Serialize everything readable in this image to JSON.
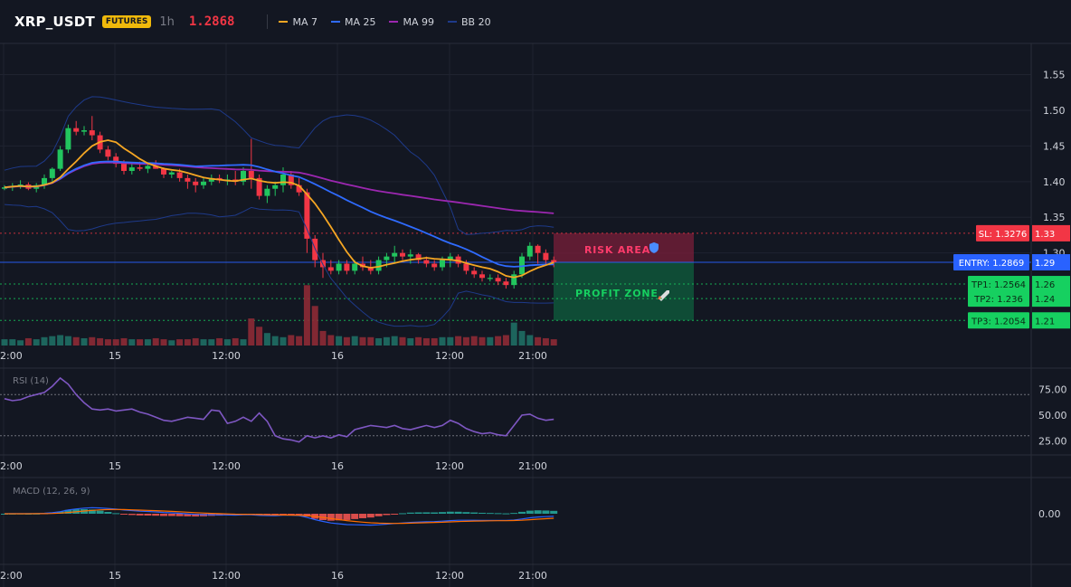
{
  "header": {
    "symbol": "XRP_USDT",
    "badge": "FUTURES",
    "interval": "1h",
    "last_price": "1.2868",
    "legend": [
      {
        "label": "MA 7",
        "color": "#f5a623"
      },
      {
        "label": "MA 25",
        "color": "#2f6bff"
      },
      {
        "label": "MA 99",
        "color": "#9c27b0"
      },
      {
        "label": "BB 20",
        "color": "#1e3a8a"
      }
    ]
  },
  "colors": {
    "background": "#131722",
    "up": "#26a69a",
    "up_bright": "#22c55e",
    "down": "#f23645",
    "ma7": "#f5a623",
    "ma25": "#2f6bff",
    "ma99": "#9c27b0",
    "bb": "#1e3a8a",
    "rsi": "#7e57c2",
    "sl": "#f23645",
    "entry": "#2962ff",
    "tp": "#16d060"
  },
  "time_axis_labels": [
    "2:00",
    "15",
    "12:00",
    "16",
    "12:00",
    "21:00"
  ],
  "price_axis": {
    "ticks": [
      "1.55",
      "1.50",
      "1.45",
      "1.40",
      "1.35",
      "1.30"
    ],
    "tags": [
      {
        "label": "SL: 1.3276",
        "value": "1.33",
        "price": 1.3276,
        "color": "#f23645"
      },
      {
        "label": "ENTRY: 1.2869",
        "value": "1.29",
        "price": 1.2869,
        "color": "#2962ff"
      },
      {
        "label": "TP1: 1.2564",
        "value": "1.26",
        "price": 1.2564,
        "color": "#16d060"
      },
      {
        "label": "TP2: 1.236",
        "value": "1.24",
        "price": 1.236,
        "color": "#16d060"
      },
      {
        "label": "TP3: 1.2054",
        "value": "1.21",
        "price": 1.2054,
        "color": "#16d060"
      }
    ]
  },
  "zones": {
    "risk_label": "RISK AREA",
    "profit_label": "PROFIT ZONE",
    "risk_icon": "shield-icon",
    "profit_icon": "rocket-icon"
  },
  "rsi": {
    "title": "RSI (14)",
    "ticks": [
      "75.00",
      "50.00",
      "25.00"
    ],
    "levels": [
      70,
      30
    ],
    "values": [
      66,
      64,
      65,
      68,
      70,
      72,
      78,
      86,
      80,
      70,
      62,
      56,
      55,
      56,
      54,
      55,
      56,
      53,
      51,
      48,
      45,
      44,
      46,
      48,
      47,
      46,
      55,
      54,
      42,
      44,
      48,
      44,
      52,
      44,
      30,
      27,
      26,
      24,
      30,
      28,
      30,
      28,
      31,
      29,
      36,
      38,
      40,
      39,
      38,
      40,
      37,
      36,
      38,
      40,
      38,
      40,
      45,
      42,
      37,
      34,
      32,
      33,
      31,
      30,
      40,
      50,
      51,
      47,
      45,
      46
    ]
  },
  "macd": {
    "title": "MACD (12, 26, 9)",
    "tick": "0.00"
  },
  "chart_data": {
    "type": "candlestick",
    "ylim": [
      1.2,
      1.565
    ],
    "candles": [
      [
        1.39,
        1.395,
        1.388,
        1.392
      ],
      [
        1.392,
        1.398,
        1.387,
        1.394
      ],
      [
        1.394,
        1.402,
        1.39,
        1.396
      ],
      [
        1.396,
        1.399,
        1.388,
        1.39
      ],
      [
        1.39,
        1.398,
        1.385,
        1.395
      ],
      [
        1.395,
        1.41,
        1.39,
        1.405
      ],
      [
        1.405,
        1.42,
        1.4,
        1.418
      ],
      [
        1.418,
        1.45,
        1.415,
        1.445
      ],
      [
        1.445,
        1.48,
        1.44,
        1.475
      ],
      [
        1.475,
        1.485,
        1.465,
        1.47
      ],
      [
        1.47,
        1.478,
        1.465,
        1.472
      ],
      [
        1.472,
        1.492,
        1.458,
        1.465
      ],
      [
        1.465,
        1.47,
        1.44,
        1.445
      ],
      [
        1.445,
        1.45,
        1.43,
        1.435
      ],
      [
        1.435,
        1.44,
        1.42,
        1.425
      ],
      [
        1.425,
        1.43,
        1.41,
        1.415
      ],
      [
        1.415,
        1.425,
        1.41,
        1.42
      ],
      [
        1.42,
        1.428,
        1.415,
        1.418
      ],
      [
        1.418,
        1.426,
        1.412,
        1.422
      ],
      [
        1.422,
        1.43,
        1.418,
        1.418
      ],
      [
        1.418,
        1.42,
        1.405,
        1.41
      ],
      [
        1.41,
        1.415,
        1.405,
        1.413
      ],
      [
        1.413,
        1.418,
        1.4,
        1.405
      ],
      [
        1.405,
        1.41,
        1.39,
        1.4
      ],
      [
        1.4,
        1.405,
        1.385,
        1.395
      ],
      [
        1.395,
        1.405,
        1.39,
        1.4
      ],
      [
        1.4,
        1.41,
        1.395,
        1.405
      ],
      [
        1.405,
        1.41,
        1.398,
        1.402
      ],
      [
        1.402,
        1.41,
        1.395,
        1.403
      ],
      [
        1.403,
        1.415,
        1.395,
        1.4
      ],
      [
        1.4,
        1.42,
        1.395,
        1.415
      ],
      [
        1.415,
        1.46,
        1.39,
        1.405
      ],
      [
        1.405,
        1.41,
        1.375,
        1.38
      ],
      [
        1.38,
        1.395,
        1.37,
        1.39
      ],
      [
        1.39,
        1.4,
        1.38,
        1.395
      ],
      [
        1.395,
        1.42,
        1.385,
        1.41
      ],
      [
        1.41,
        1.415,
        1.39,
        1.395
      ],
      [
        1.395,
        1.405,
        1.38,
        1.385
      ],
      [
        1.385,
        1.39,
        1.3,
        1.32
      ],
      [
        1.32,
        1.325,
        1.28,
        1.29
      ],
      [
        1.29,
        1.3,
        1.265,
        1.28
      ],
      [
        1.28,
        1.29,
        1.27,
        1.275
      ],
      [
        1.275,
        1.29,
        1.27,
        1.285
      ],
      [
        1.285,
        1.29,
        1.27,
        1.275
      ],
      [
        1.275,
        1.29,
        1.27,
        1.285
      ],
      [
        1.285,
        1.295,
        1.275,
        1.28
      ],
      [
        1.28,
        1.29,
        1.27,
        1.275
      ],
      [
        1.275,
        1.295,
        1.27,
        1.29
      ],
      [
        1.29,
        1.3,
        1.28,
        1.295
      ],
      [
        1.295,
        1.31,
        1.285,
        1.3
      ],
      [
        1.3,
        1.305,
        1.29,
        1.295
      ],
      [
        1.295,
        1.305,
        1.285,
        1.298
      ],
      [
        1.298,
        1.3,
        1.285,
        1.29
      ],
      [
        1.29,
        1.295,
        1.28,
        1.285
      ],
      [
        1.285,
        1.29,
        1.275,
        1.28
      ],
      [
        1.28,
        1.295,
        1.275,
        1.29
      ],
      [
        1.29,
        1.3,
        1.28,
        1.295
      ],
      [
        1.295,
        1.298,
        1.28,
        1.285
      ],
      [
        1.285,
        1.29,
        1.27,
        1.275
      ],
      [
        1.275,
        1.28,
        1.265,
        1.27
      ],
      [
        1.27,
        1.275,
        1.26,
        1.265
      ],
      [
        1.265,
        1.27,
        1.26,
        1.265
      ],
      [
        1.265,
        1.27,
        1.255,
        1.26
      ],
      [
        1.26,
        1.265,
        1.25,
        1.255
      ],
      [
        1.255,
        1.275,
        1.25,
        1.27
      ],
      [
        1.27,
        1.3,
        1.265,
        1.295
      ],
      [
        1.295,
        1.315,
        1.29,
        1.31
      ],
      [
        1.31,
        1.312,
        1.285,
        1.3
      ],
      [
        1.3,
        1.305,
        1.285,
        1.29
      ],
      [
        1.29,
        1.295,
        1.28,
        1.287
      ]
    ],
    "volumes": [
      6,
      6,
      5,
      7,
      6,
      8,
      9,
      10,
      9,
      8,
      7,
      8,
      7,
      6,
      6,
      7,
      6,
      6,
      6,
      7,
      6,
      5,
      6,
      6,
      7,
      6,
      6,
      7,
      6,
      7,
      6,
      26,
      18,
      12,
      9,
      8,
      10,
      9,
      58,
      38,
      14,
      10,
      9,
      8,
      9,
      8,
      8,
      7,
      8,
      9,
      8,
      7,
      8,
      7,
      7,
      8,
      8,
      9,
      8,
      9,
      8,
      8,
      9,
      10,
      22,
      14,
      10,
      8,
      7,
      6
    ]
  }
}
